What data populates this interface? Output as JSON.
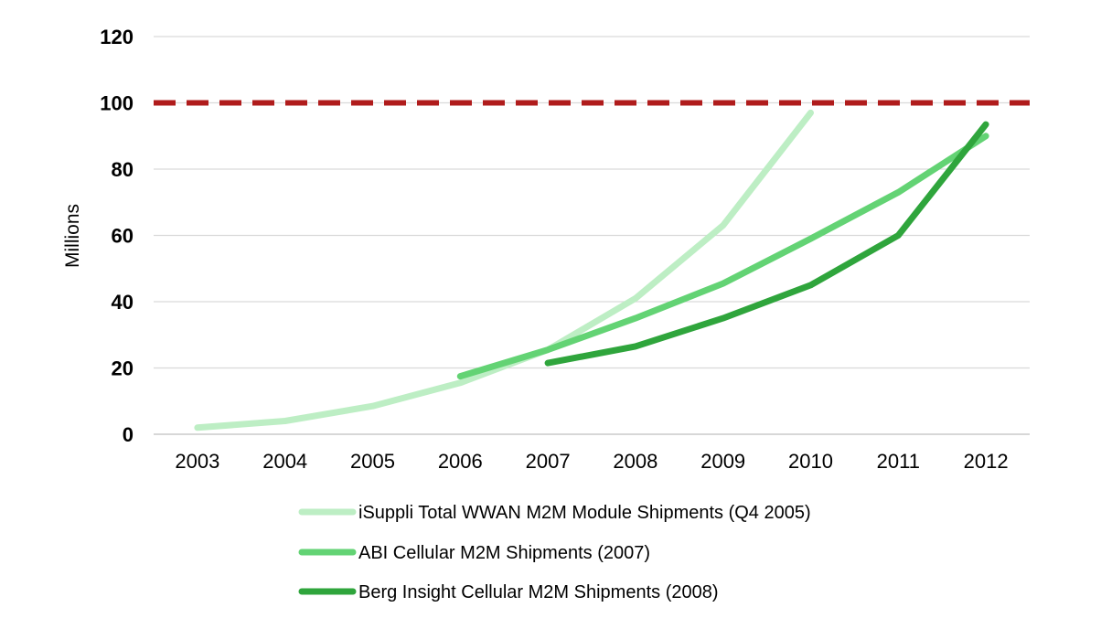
{
  "chart_data": {
    "type": "line",
    "xlabel": "",
    "ylabel": "Millions",
    "ylim": [
      0,
      120
    ],
    "yticks": [
      "0",
      "20",
      "40",
      "60",
      "80",
      "100",
      "120"
    ],
    "categories": [
      "2003",
      "2004",
      "2005",
      "2006",
      "2007",
      "2008",
      "2009",
      "2010",
      "2011",
      "2012"
    ],
    "grid": true,
    "legend_position": "bottom",
    "reference_line": {
      "y": 100,
      "color": "#b01c1c",
      "style": "dashed"
    },
    "series": [
      {
        "name": "iSuppli Total WWAN M2M Module Shipments (Q4 2005)",
        "color": "#bdeec4",
        "values": [
          2,
          4,
          8.5,
          15.5,
          25.5,
          41,
          63,
          97,
          null,
          null
        ]
      },
      {
        "name": "ABI Cellular M2M Shipments (2007)",
        "color": "#63d374",
        "values": [
          null,
          null,
          null,
          17.5,
          25.5,
          35,
          45.5,
          59,
          73,
          90
        ]
      },
      {
        "name": "Berg Insight Cellular M2M Shipments (2008)",
        "color": "#2fa53c",
        "values": [
          null,
          null,
          null,
          null,
          21.5,
          26.5,
          35,
          45,
          60,
          93.5
        ]
      }
    ]
  }
}
